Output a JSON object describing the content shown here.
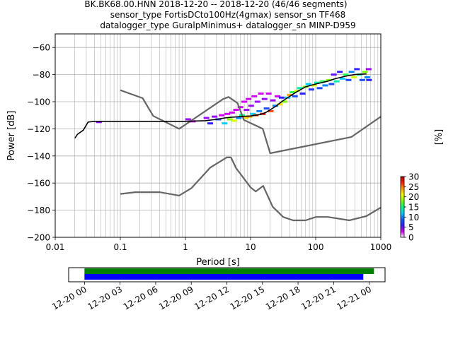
{
  "figure": {
    "title_lines": [
      "BK.BK68.00.HNN   2018-12-20 -- 2018-12-20  (46/46 segments)",
      "sensor_type FortisDCto100Hz(4gmax) sensor_sn TF468",
      "datalogger_type GuralpMinimus+ datalogger_sn MINP-D959"
    ]
  },
  "chart_data": [
    {
      "type": "heatmap",
      "xlabel": "Period [s]",
      "ylabel": "Power [dB]",
      "xscale": "log",
      "xlim": [
        0.01,
        1000
      ],
      "ylim": [
        -200,
        -50
      ],
      "xticks": [
        0.01,
        0.1,
        1,
        10,
        100,
        1000
      ],
      "xtick_labels": [
        "0.01",
        "0.1",
        "1",
        "10",
        "100",
        "1000"
      ],
      "yticks": [
        -200,
        -180,
        -160,
        -140,
        -120,
        -100,
        -80,
        -60
      ],
      "ytick_labels": [
        "−200",
        "−180",
        "−160",
        "−140",
        "−120",
        "−100",
        "−80",
        "−60"
      ],
      "grid": true,
      "colorbar": {
        "label": "[%]",
        "range": [
          0,
          30
        ],
        "ticks": [
          0,
          5,
          10,
          15,
          20,
          25,
          30
        ],
        "tick_labels": [
          "0",
          "5",
          "10",
          "15",
          "20",
          "25",
          "30"
        ],
        "colormap": [
          "#ffffff",
          "#d000f0",
          "#3020ff",
          "#1060ff",
          "#00d0ff",
          "#00ff80",
          "#80ff00",
          "#ffff00",
          "#ffa000",
          "#ff2000",
          "#b00000"
        ]
      },
      "series": [
        {
          "name": "",
          "role": "noise model",
          "color": "#666666",
          "x": [
            0.1,
            0.22,
            0.32,
            0.8,
            3.8,
            4.6,
            6.3,
            7.9,
            15.4,
            20,
            354.8,
            1000
          ],
          "y": [
            -91.5,
            -97.4,
            -110.5,
            -120,
            -98,
            -96.5,
            -101,
            -113.5,
            -120,
            -138,
            -126,
            -111
          ]
        },
        {
          "name": "",
          "role": "noise model",
          "color": "#666666",
          "x": [
            0.1,
            0.17,
            0.4,
            0.8,
            1.24,
            2.4,
            4.3,
            5,
            6,
            10,
            12,
            15.6,
            21.9,
            31.6,
            45,
            70,
            101,
            154,
            328,
            600,
            1000
          ],
          "y": [
            -168,
            -166.7,
            -166.7,
            -169.2,
            -163.7,
            -148.6,
            -141.1,
            -141.1,
            -149,
            -163.2,
            -166.2,
            -162.1,
            -177.5,
            -185,
            -187.5,
            -187.5,
            -185,
            -185,
            -187.5,
            -184.4,
            -178
          ]
        },
        {
          "name": "",
          "role": "mode",
          "color": "#000000",
          "x": [
            0.02,
            0.022,
            0.027,
            0.032,
            0.04,
            0.1,
            0.5,
            1,
            2,
            3,
            4,
            5,
            7,
            10,
            14,
            17,
            20,
            25,
            30,
            40,
            50,
            70,
            100,
            150,
            200,
            300,
            400,
            600
          ],
          "y": [
            -127,
            -124,
            -121,
            -115,
            -114.5,
            -114.5,
            -114.5,
            -114.5,
            -114,
            -113,
            -112,
            -111.5,
            -111,
            -110.5,
            -109.5,
            -108,
            -106,
            -103,
            -100,
            -96,
            -93,
            -89,
            -87,
            -85,
            -83,
            -81,
            -80,
            -79.5
          ]
        }
      ],
      "density_cells": [
        {
          "x": 0.047,
          "y": -115,
          "p": 4
        },
        {
          "x": 1.1,
          "y": -113,
          "p": 4
        },
        {
          "x": 1.3,
          "y": -114.5,
          "p": 3
        },
        {
          "x": 2.1,
          "y": -112,
          "p": 4
        },
        {
          "x": 2.4,
          "y": -116,
          "p": 6
        },
        {
          "x": 2.8,
          "y": -111,
          "p": 4
        },
        {
          "x": 3.2,
          "y": -113,
          "p": 8
        },
        {
          "x": 3.6,
          "y": -110,
          "p": 3
        },
        {
          "x": 4.0,
          "y": -116,
          "p": 12
        },
        {
          "x": 4.4,
          "y": -109,
          "p": 3
        },
        {
          "x": 4.8,
          "y": -113,
          "p": 18
        },
        {
          "x": 5.2,
          "y": -108,
          "p": 3
        },
        {
          "x": 5.6,
          "y": -114,
          "p": 20
        },
        {
          "x": 6.0,
          "y": -106,
          "p": 3
        },
        {
          "x": 6.6,
          "y": -112,
          "p": 10
        },
        {
          "x": 7.0,
          "y": -104,
          "p": 3
        },
        {
          "x": 7.4,
          "y": -110,
          "p": 15
        },
        {
          "x": 8.0,
          "y": -100,
          "p": 3
        },
        {
          "x": 8.3,
          "y": -112,
          "p": 22
        },
        {
          "x": 8.7,
          "y": -106,
          "p": 4
        },
        {
          "x": 9.3,
          "y": -98,
          "p": 3
        },
        {
          "x": 9.6,
          "y": -111,
          "p": 24
        },
        {
          "x": 10.2,
          "y": -103,
          "p": 4
        },
        {
          "x": 10.8,
          "y": -109,
          "p": 12
        },
        {
          "x": 11.4,
          "y": -96,
          "p": 3
        },
        {
          "x": 12.0,
          "y": -110,
          "p": 26
        },
        {
          "x": 12.8,
          "y": -100,
          "p": 4
        },
        {
          "x": 13.6,
          "y": -107,
          "p": 10
        },
        {
          "x": 14.4,
          "y": -94,
          "p": 3
        },
        {
          "x": 15.4,
          "y": -109,
          "p": 28
        },
        {
          "x": 16.4,
          "y": -98,
          "p": 4
        },
        {
          "x": 17.6,
          "y": -105,
          "p": 8
        },
        {
          "x": 19.0,
          "y": -94,
          "p": 3
        },
        {
          "x": 20.4,
          "y": -107,
          "p": 26
        },
        {
          "x": 22.0,
          "y": -99,
          "p": 4
        },
        {
          "x": 24.0,
          "y": -103,
          "p": 10
        },
        {
          "x": 26.0,
          "y": -96,
          "p": 3
        },
        {
          "x": 28.0,
          "y": -102,
          "p": 22
        },
        {
          "x": 30.0,
          "y": -97,
          "p": 6
        },
        {
          "x": 33.0,
          "y": -100,
          "p": 18
        },
        {
          "x": 37.0,
          "y": -97,
          "p": 12
        },
        {
          "x": 40.0,
          "y": -95,
          "p": 24
        },
        {
          "x": 44.0,
          "y": -93,
          "p": 16
        },
        {
          "x": 48.0,
          "y": -96,
          "p": 8
        },
        {
          "x": 52.0,
          "y": -92,
          "p": 20
        },
        {
          "x": 57.0,
          "y": -90,
          "p": 14
        },
        {
          "x": 63.0,
          "y": -94,
          "p": 6
        },
        {
          "x": 70.0,
          "y": -89,
          "p": 18
        },
        {
          "x": 78.0,
          "y": -87,
          "p": 12
        },
        {
          "x": 86.0,
          "y": -91,
          "p": 7
        },
        {
          "x": 95.0,
          "y": -88,
          "p": 20
        },
        {
          "x": 105.0,
          "y": -86,
          "p": 14
        },
        {
          "x": 115.0,
          "y": -90,
          "p": 8
        },
        {
          "x": 128.0,
          "y": -85,
          "p": 16
        },
        {
          "x": 140.0,
          "y": -88,
          "p": 10
        },
        {
          "x": 160.0,
          "y": -84,
          "p": 18
        },
        {
          "x": 175.0,
          "y": -87,
          "p": 8
        },
        {
          "x": 190.0,
          "y": -80,
          "p": 5
        },
        {
          "x": 210.0,
          "y": -85,
          "p": 14
        },
        {
          "x": 235.0,
          "y": -78,
          "p": 6
        },
        {
          "x": 260.0,
          "y": -83,
          "p": 12
        },
        {
          "x": 290.0,
          "y": -80,
          "p": 16
        },
        {
          "x": 320.0,
          "y": -84,
          "p": 8
        },
        {
          "x": 355.0,
          "y": -78,
          "p": 10
        },
        {
          "x": 390.0,
          "y": -82,
          "p": 20
        },
        {
          "x": 430.0,
          "y": -76,
          "p": 6
        },
        {
          "x": 470.0,
          "y": -80,
          "p": 14
        },
        {
          "x": 520.0,
          "y": -84,
          "p": 8
        },
        {
          "x": 570.0,
          "y": -78,
          "p": 18
        },
        {
          "x": 620.0,
          "y": -82,
          "p": 10
        },
        {
          "x": 650.0,
          "y": -76,
          "p": 4
        },
        {
          "x": 660.0,
          "y": -84,
          "p": 6
        }
      ]
    },
    {
      "type": "bar",
      "role": "data availability",
      "xlim": [
        "2018-12-19 22:40",
        "2018-12-21 01:20"
      ],
      "xtick_labels": [
        "12-20 00",
        "12-20 03",
        "12-20 06",
        "12-20 09",
        "12-20 12",
        "12-20 15",
        "12-20 18",
        "12-20 21",
        "12-21 00"
      ],
      "xtick_hours": [
        0,
        3,
        6,
        9,
        12,
        15,
        18,
        21,
        24
      ],
      "bars": [
        {
          "start_hour": 0,
          "end_hour": 24.4,
          "color": "#008000"
        },
        {
          "start_hour": 0,
          "end_hour": 23.5,
          "color": "#0000ff"
        }
      ]
    }
  ]
}
